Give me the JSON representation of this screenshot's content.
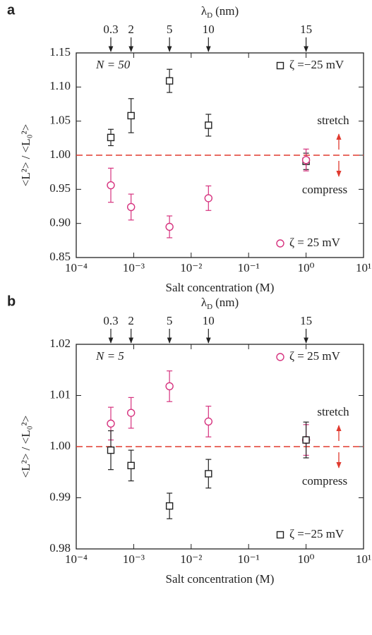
{
  "chart_data": [
    {
      "type": "scatter",
      "panel_label": "a",
      "x2label": {
        "symbol": "λ",
        "subscript": "D",
        "unit": "(nm)"
      },
      "x2ticks": [
        {
          "value": 0.0004,
          "label": "0.3"
        },
        {
          "value": 0.0009,
          "label": "2"
        },
        {
          "value": 0.0042,
          "label": "5"
        },
        {
          "value": 0.02,
          "label": "10"
        },
        {
          "value": 1,
          "label": "15"
        }
      ],
      "xlabel": "Salt concentration (M)",
      "ylabel": "<L²> / <L₀²>",
      "xscale": "log",
      "xlim": [
        0.0001,
        10
      ],
      "xticks": [
        {
          "value": 0.0001,
          "label": "10⁻⁴"
        },
        {
          "value": 0.001,
          "label": "10⁻³"
        },
        {
          "value": 0.01,
          "label": "10⁻²"
        },
        {
          "value": 0.1,
          "label": "10⁻¹"
        },
        {
          "value": 1,
          "label": "10⁰"
        },
        {
          "value": 10,
          "label": "10¹"
        }
      ],
      "ylim": [
        0.85,
        1.15
      ],
      "yticks": [
        0.85,
        {
          "value": 0.9,
          "label": "0.90"
        },
        0.95,
        {
          "value": 1,
          "label": "1.00"
        },
        1.05,
        {
          "value": 1.1,
          "label": "1.10"
        },
        1.15
      ],
      "reference_line": 1,
      "reference_color": "#e03a2f",
      "annotations": [
        "N = 50",
        "stretch",
        "compress"
      ],
      "x": [
        0.0004,
        0.0009,
        0.0042,
        0.02,
        1
      ],
      "series": [
        {
          "name": "ζ =−25 mV",
          "marker": "square",
          "color": "#222222",
          "legend": "top-right",
          "values": [
            1.026,
            1.058,
            1.109,
            1.044,
            0.991
          ],
          "errors": [
            0.012,
            0.025,
            0.017,
            0.016,
            0.012
          ]
        },
        {
          "name": "ζ = 25 mV",
          "marker": "circle",
          "color": "#d6337f",
          "legend": "bottom-right",
          "values": [
            0.956,
            0.924,
            0.895,
            0.937,
            0.993
          ],
          "errors": [
            0.025,
            0.019,
            0.016,
            0.018,
            0.016
          ]
        }
      ]
    },
    {
      "type": "scatter",
      "panel_label": "b",
      "x2label": {
        "symbol": "λ",
        "subscript": "D",
        "unit": "(nm)"
      },
      "x2ticks": [
        {
          "value": 0.0004,
          "label": "0.3"
        },
        {
          "value": 0.0009,
          "label": "2"
        },
        {
          "value": 0.0042,
          "label": "5"
        },
        {
          "value": 0.02,
          "label": "10"
        },
        {
          "value": 1,
          "label": "15"
        }
      ],
      "xlabel": "Salt concentration (M)",
      "ylabel": "<L²> / <L₀²>",
      "xscale": "log",
      "xlim": [
        0.0001,
        10
      ],
      "xticks": [
        {
          "value": 0.0001,
          "label": "10⁻⁴"
        },
        {
          "value": 0.001,
          "label": "10⁻³"
        },
        {
          "value": 0.01,
          "label": "10⁻²"
        },
        {
          "value": 0.1,
          "label": "10⁻¹"
        },
        {
          "value": 1,
          "label": "10⁰"
        },
        {
          "value": 10,
          "label": "10¹"
        }
      ],
      "ylim": [
        0.98,
        1.02
      ],
      "yticks": [
        0.98,
        0.99,
        {
          "value": 1,
          "label": "1.00"
        },
        1.01,
        1.02
      ],
      "reference_line": 1,
      "reference_color": "#e03a2f",
      "annotations": [
        "N = 5",
        "stretch",
        "compress"
      ],
      "x": [
        0.0004,
        0.0009,
        0.0042,
        0.02,
        1
      ],
      "series": [
        {
          "name": "ζ = 25 mV",
          "marker": "circle",
          "color": "#d6337f",
          "legend": "top-right",
          "values": [
            1.0045,
            1.0066,
            1.0118,
            1.0049,
            1.0013
          ],
          "errors": [
            0.0032,
            0.003,
            0.003,
            0.003,
            0.003
          ]
        },
        {
          "name": "ζ =−25 mV",
          "marker": "square",
          "color": "#222222",
          "legend": "bottom-right",
          "values": [
            0.9993,
            0.9963,
            0.9884,
            0.9947,
            1.0013
          ],
          "errors": [
            0.0038,
            0.003,
            0.0025,
            0.0028,
            0.0035
          ]
        }
      ]
    }
  ]
}
